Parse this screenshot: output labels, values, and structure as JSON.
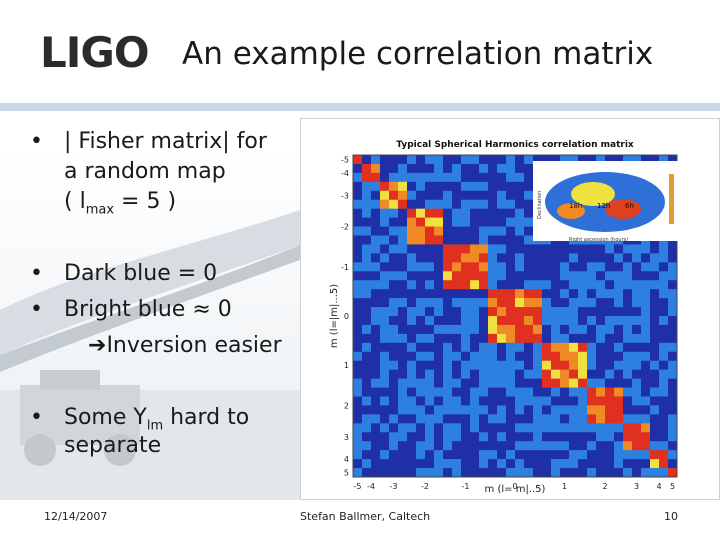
{
  "slide": {
    "logo_text": "LIGO",
    "title": "An example correlation matrix",
    "bullets": [
      {
        "line1": "| Fisher matrix| for",
        "line2": "a random map",
        "line3_pre": "( l",
        "line3_sub": "max",
        "line3_post": " = 5 )"
      },
      {
        "text": "Dark blue   = 0"
      },
      {
        "text": "Bright blue ≈ 0"
      },
      {
        "arrow": "Inversion easier"
      },
      {
        "pre": "Some Y",
        "sub": "lm",
        "post": " hard to",
        "line2": "separate"
      }
    ],
    "bullet_char": "•",
    "arrow_char": "➔",
    "footer": {
      "date": "12/14/2007",
      "author": "Stefan Ballmer, Caltech",
      "page": "10"
    }
  },
  "figure": {
    "title": "Typical Spherical Harmonics correlation matrix",
    "xlabel": "m (l= m|..5)",
    "ylabel": "m (l=|m|...5)",
    "x_ticks": [
      "-5",
      "-4",
      "-3",
      "-2",
      "-1",
      "0",
      "1",
      "2",
      "3",
      "4",
      "5"
    ],
    "y_ticks": [
      "-5",
      "-4",
      "-3",
      "-2",
      "-1",
      "0",
      "1",
      "2",
      "3",
      "4",
      "5"
    ],
    "inset": {
      "labels": [
        "18h",
        "12h",
        "6h"
      ],
      "title_label": "Right ascension (hours)",
      "side_label": "Declination"
    },
    "colors": {
      "dark_blue": "#1f2fa8",
      "bright_blue": "#2d7fe0",
      "red": "#e03020",
      "orange": "#f08a24",
      "yellow": "#f0e040"
    }
  },
  "chart_data": {
    "type": "heatmap",
    "title": "Typical Spherical Harmonics correlation matrix",
    "xlabel": "m (l= m|..5)",
    "ylabel": "m (l=|m|...5)",
    "size": 36,
    "x_tick_labels": [
      "-5",
      "-4",
      "-3",
      "-2",
      "-1",
      "0",
      "1",
      "2",
      "3",
      "4",
      "5"
    ],
    "y_tick_labels": [
      "-5",
      "-4",
      "-3",
      "-2",
      "-1",
      "0",
      "1",
      "2",
      "3",
      "4",
      "5"
    ],
    "block_sizes": [
      1,
      2,
      3,
      4,
      5,
      6,
      5,
      4,
      3,
      2,
      1
    ],
    "diagonal_value": 1.0,
    "colormap": "jet"
  }
}
